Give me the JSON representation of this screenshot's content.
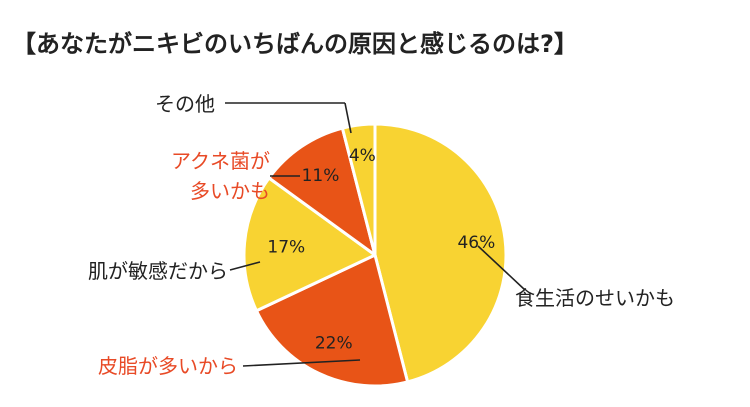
{
  "chart_data": {
    "type": "pie",
    "title": "【あなたがニキビのいちばんの原因と感じるのは?】",
    "start_angle_deg": 0,
    "direction": "clockwise",
    "slices": [
      {
        "label": "食生活のせいかも",
        "value": 46,
        "value_label": "46%",
        "color": "#f8d332",
        "label_color": "#222222",
        "label_lines": [
          "食生活のせいかも"
        ]
      },
      {
        "label": "皮脂が多いから",
        "value": 22,
        "value_label": "22%",
        "color": "#e85417",
        "label_color": "#e84a26",
        "label_lines": [
          "皮脂が多いから"
        ]
      },
      {
        "label": "肌が敏感だから",
        "value": 17,
        "value_label": "17%",
        "color": "#f8d332",
        "label_color": "#222222",
        "label_lines": [
          "肌が敏感だから"
        ]
      },
      {
        "label": "アクネ菌が多いかも",
        "value": 11,
        "value_label": "11%",
        "color": "#e85417",
        "label_color": "#e84a26",
        "label_lines": [
          "アクネ菌が",
          "多いかも"
        ]
      },
      {
        "label": "その他",
        "value": 4,
        "value_label": "4%",
        "color": "#f8d332",
        "label_color": "#222222",
        "label_lines": [
          "その他"
        ]
      }
    ]
  }
}
